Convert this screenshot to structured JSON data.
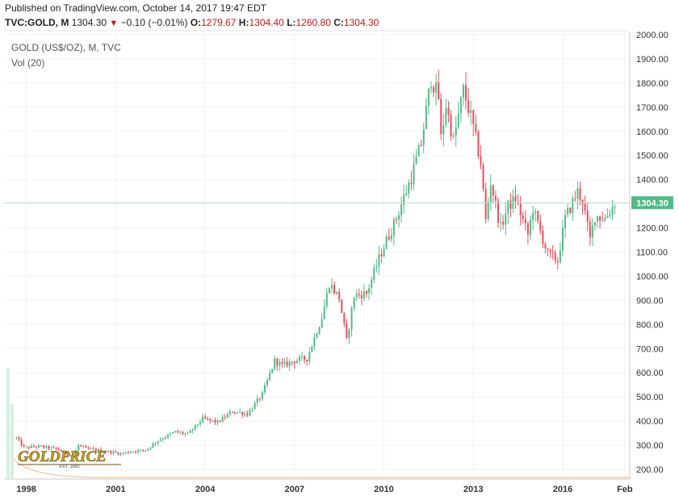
{
  "header": {
    "published": "Published on TradingView.com, October 14, 2017 19:47 EDT",
    "symbol": "TVC:GOLD, M",
    "last": "1304.30",
    "change": "−0.10 (−0.01%)",
    "o_label": "O:",
    "o_value": "1279.67",
    "h_label": "H:",
    "h_value": "1304.40",
    "l_label": "L:",
    "l_value": "1260.80",
    "c_label": "C:",
    "c_value": "1304.30",
    "down_color": "#b71c1c"
  },
  "chart_data": {
    "type": "candlestick",
    "title": "GOLD (US$/OZ), M, TVC",
    "indicator": "Vol (20)",
    "last_price_label": "1304.30",
    "last_price": 1304.3,
    "ylim": [
      160,
      2010
    ],
    "y_ticks": [
      "2000.00",
      "1900.00",
      "1800.00",
      "1700.00",
      "1600.00",
      "1500.00",
      "1400.00",
      "1300.00",
      "1200.00",
      "1100.00",
      "1000.00",
      "900.00",
      "800.00",
      "700.00",
      "600.00",
      "500.00",
      "400.00",
      "300.00",
      "200.00"
    ],
    "x_ticks": [
      "1998",
      "2001",
      "2004",
      "2007",
      "2010",
      "2013",
      "2016",
      "Feb"
    ],
    "x_range": [
      "1997-04",
      "2018-04"
    ],
    "up_color": "#53b987",
    "down_color": "#eb4d5c",
    "grid": true,
    "logo": {
      "text": "GOLDPRICE",
      "sub": "EST. 2002"
    },
    "price_path": [
      [
        "1997-09",
        330
      ],
      [
        "1997-12",
        290
      ],
      [
        "1998-06",
        295
      ],
      [
        "1999-01",
        285
      ],
      [
        "1999-08",
        255
      ],
      [
        "1999-10",
        300
      ],
      [
        "2000-01",
        285
      ],
      [
        "2000-09",
        275
      ],
      [
        "2001-03",
        265
      ],
      [
        "2001-08",
        275
      ],
      [
        "2002-01",
        280
      ],
      [
        "2002-06",
        320
      ],
      [
        "2003-01",
        355
      ],
      [
        "2003-06",
        345
      ],
      [
        "2003-12",
        410
      ],
      [
        "2004-06",
        395
      ],
      [
        "2004-12",
        440
      ],
      [
        "2005-06",
        430
      ],
      [
        "2005-12",
        510
      ],
      [
        "2006-05",
        650
      ],
      [
        "2006-08",
        630
      ],
      [
        "2007-01",
        650
      ],
      [
        "2007-06",
        660
      ],
      [
        "2007-12",
        830
      ],
      [
        "2008-03",
        970
      ],
      [
        "2008-07",
        910
      ],
      [
        "2008-10",
        730
      ],
      [
        "2009-01",
        920
      ],
      [
        "2009-06",
        930
      ],
      [
        "2009-12",
        1100
      ],
      [
        "2010-06",
        1240
      ],
      [
        "2010-12",
        1410
      ],
      [
        "2011-04",
        1550
      ],
      [
        "2011-08",
        1820
      ],
      [
        "2011-11",
        1740
      ],
      [
        "2011-12",
        1570
      ],
      [
        "2012-02",
        1710
      ],
      [
        "2012-05",
        1560
      ],
      [
        "2012-09",
        1770
      ],
      [
        "2012-12",
        1660
      ],
      [
        "2013-04",
        1470
      ],
      [
        "2013-06",
        1230
      ],
      [
        "2013-08",
        1390
      ],
      [
        "2013-12",
        1200
      ],
      [
        "2014-03",
        1290
      ],
      [
        "2014-06",
        1320
      ],
      [
        "2014-11",
        1170
      ],
      [
        "2015-01",
        1280
      ],
      [
        "2015-07",
        1090
      ],
      [
        "2015-11",
        1065
      ],
      [
        "2016-02",
        1240
      ],
      [
        "2016-07",
        1350
      ],
      [
        "2016-09",
        1315
      ],
      [
        "2016-12",
        1150
      ],
      [
        "2017-02",
        1250
      ],
      [
        "2017-06",
        1240
      ],
      [
        "2017-09",
        1285
      ],
      [
        "2017-10",
        1304
      ]
    ],
    "volume_bars": [
      620,
      470
    ]
  }
}
